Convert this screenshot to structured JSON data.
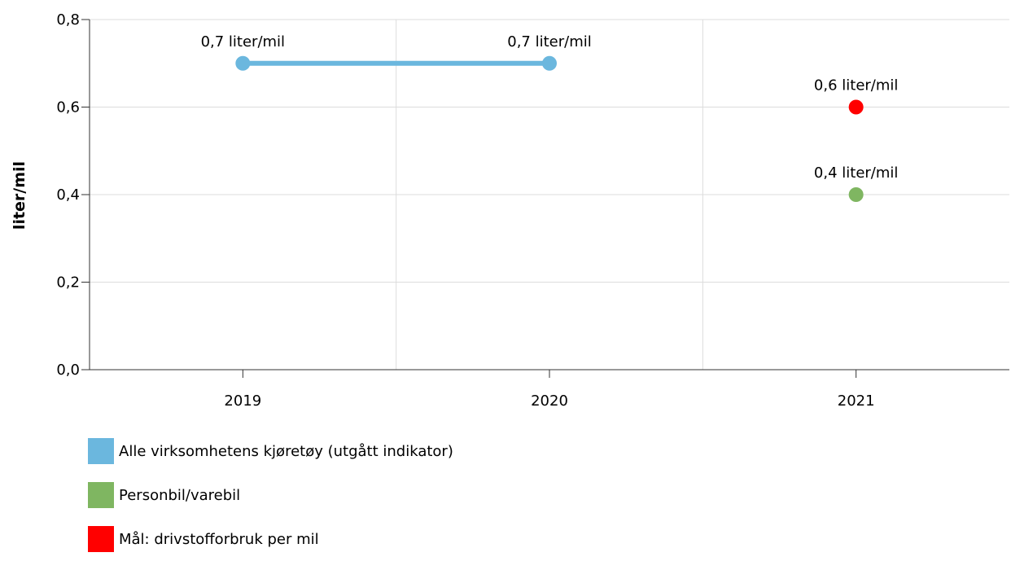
{
  "chart_data": {
    "type": "line",
    "title": "",
    "xlabel": "",
    "ylabel": "liter/mil",
    "categories": [
      "2019",
      "2020",
      "2021"
    ],
    "ylim": [
      0,
      0.8
    ],
    "yticks": [
      "0,0",
      "0,2",
      "0,4",
      "0,6",
      "0,8"
    ],
    "grid": true,
    "legend_position": "bottom-left",
    "series": [
      {
        "name": "Alle virksomhetens kjøretøy (utgått indikator)",
        "color": "#6bb7de",
        "mode": "line",
        "values": [
          0.7,
          0.7,
          null
        ],
        "labels": [
          "0,7 liter/mil",
          "0,7 liter/mil",
          null
        ]
      },
      {
        "name": "Personbil/varebil",
        "color": "#7fb661",
        "mode": "point",
        "values": [
          null,
          null,
          0.4
        ],
        "labels": [
          null,
          null,
          "0,4 liter/mil"
        ]
      },
      {
        "name": "Mål: drivstofforbruk per mil",
        "color": "#ff0000",
        "mode": "point",
        "values": [
          null,
          null,
          0.6
        ],
        "labels": [
          null,
          null,
          "0,6 liter/mil"
        ]
      }
    ]
  }
}
